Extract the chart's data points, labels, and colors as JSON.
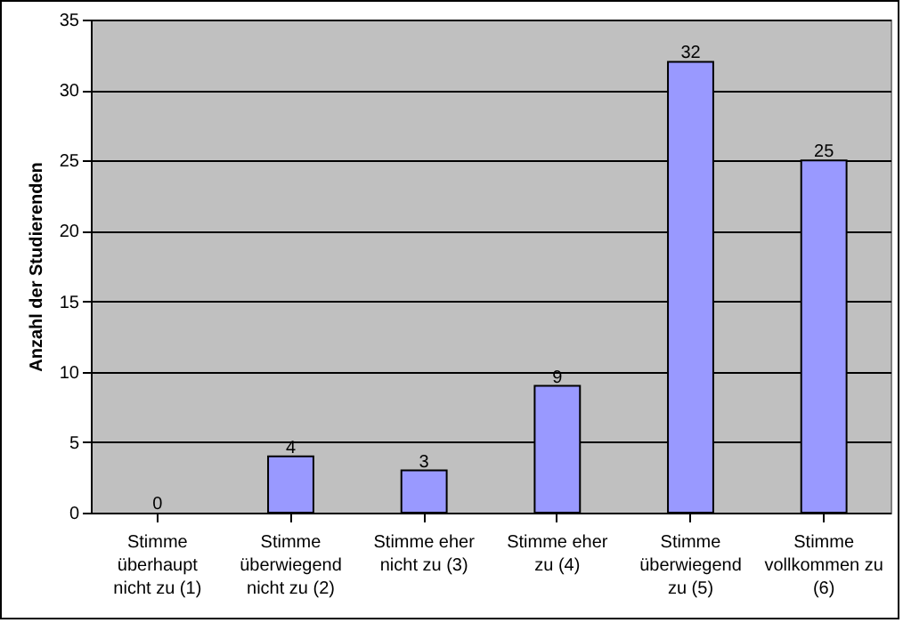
{
  "chart_data": {
    "type": "bar",
    "ylabel": "Anzahl der Studierenden",
    "categories": [
      "Stimme überhaupt nicht zu (1)",
      "Stimme überwiegend nicht zu (2)",
      "Stimme eher nicht zu (3)",
      "Stimme eher zu (4)",
      "Stimme überwiegend zu (5)",
      "Stimme vollkommen zu (6)"
    ],
    "values": [
      0,
      4,
      3,
      9,
      32,
      25
    ],
    "color": "#9999ff",
    "ylim": [
      0,
      35
    ],
    "yticks": [
      0,
      5,
      10,
      15,
      20,
      25,
      30,
      35
    ],
    "grid": "y",
    "data_labels": true
  }
}
